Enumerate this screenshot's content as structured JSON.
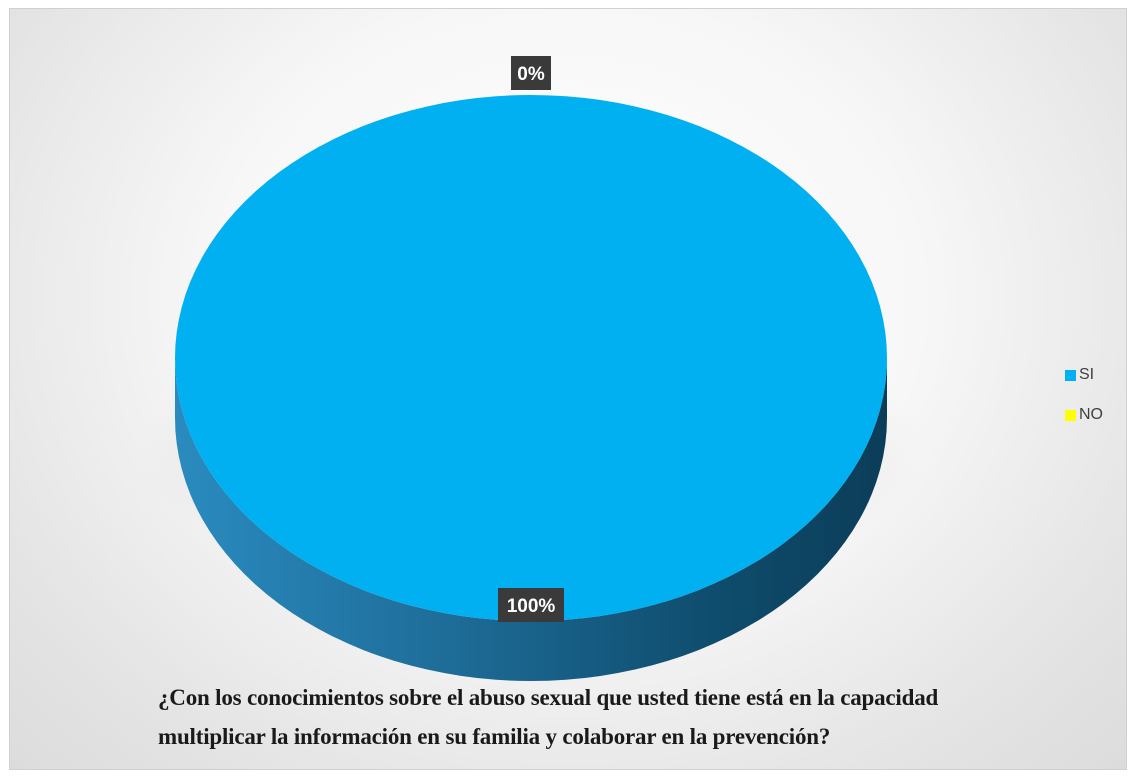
{
  "chart_data": {
    "type": "pie",
    "title_line_1": "¿Con los conocimientos sobre el abuso sexual que usted tiene está en la capacidad",
    "title_line_2": "multiplicar la información en su familia y colaborar en la prevención?",
    "categories": [
      "SI",
      "NO"
    ],
    "values": [
      100,
      0
    ],
    "value_unit": "%",
    "data_labels": [
      "100%",
      "0%"
    ],
    "colors": [
      "#00b0f0",
      "#ffff00"
    ],
    "style": "3d",
    "legend_position": "right"
  }
}
